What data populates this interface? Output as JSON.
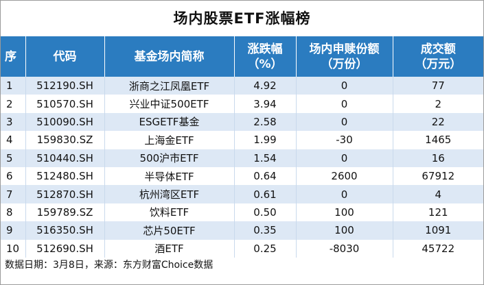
{
  "title": "场内股票ETF涨幅榜",
  "headers": {
    "index": "序",
    "code": "代码",
    "name": "基金场内简称",
    "change_1": "涨跌幅",
    "change_2": "（%）",
    "redeem_1": "场内申赎份额",
    "redeem_2": "（万份）",
    "turnover_1": "成交额",
    "turnover_2": "（万元）"
  },
  "rows": [
    {
      "index": "1",
      "code": "512190.SH",
      "name": "浙商之江凤凰ETF",
      "change": "4.92",
      "redeem": "0",
      "turnover": "77"
    },
    {
      "index": "2",
      "code": "510570.SH",
      "name": "兴业中证500ETF",
      "change": "3.94",
      "redeem": "0",
      "turnover": "2"
    },
    {
      "index": "3",
      "code": "510090.SH",
      "name": "ESGETF基金",
      "change": "2.58",
      "redeem": "0",
      "turnover": "22"
    },
    {
      "index": "4",
      "code": "159830.SZ",
      "name": "上海金ETF",
      "change": "1.99",
      "redeem": "-30",
      "turnover": "1465"
    },
    {
      "index": "5",
      "code": "510440.SH",
      "name": "500沪市ETF",
      "change": "1.54",
      "redeem": "0",
      "turnover": "16"
    },
    {
      "index": "6",
      "code": "512480.SH",
      "name": "半导体ETF",
      "change": "0.64",
      "redeem": "2600",
      "turnover": "67912"
    },
    {
      "index": "7",
      "code": "512870.SH",
      "name": "杭州湾区ETF",
      "change": "0.61",
      "redeem": "0",
      "turnover": "4"
    },
    {
      "index": "8",
      "code": "159789.SZ",
      "name": "饮料ETF",
      "change": "0.50",
      "redeem": "100",
      "turnover": "121"
    },
    {
      "index": "9",
      "code": "516350.SH",
      "name": "芯片50ETF",
      "change": "0.35",
      "redeem": "100",
      "turnover": "1091"
    },
    {
      "index": "10",
      "code": "512690.SH",
      "name": "酒ETF",
      "change": "0.25",
      "redeem": "-8030",
      "turnover": "45722"
    }
  ],
  "footer": "数据日期：3月8日，来源：东方财富Choice数据",
  "colors": {
    "header_bg": "#2b7cc0",
    "row_alt": "#dde8f5"
  }
}
